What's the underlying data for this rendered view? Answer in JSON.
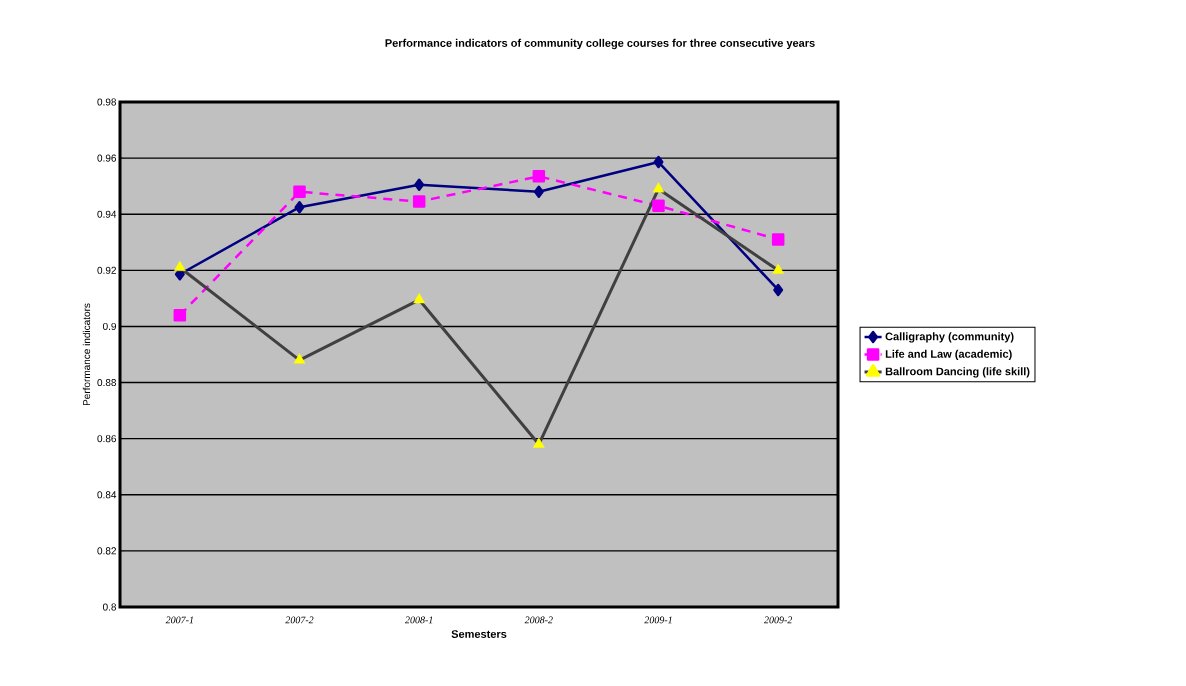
{
  "chart_data": {
    "type": "line",
    "title": "Performance indicators of community college courses for three consecutive years",
    "xlabel": "Semesters",
    "ylabel": "Performance indicators",
    "categories": [
      "2007-1",
      "2007-2",
      "2008-1",
      "2008-2",
      "2009-1",
      "2009-2"
    ],
    "series": [
      {
        "name": "Calligraphy (community)",
        "color": "#000080",
        "marker": "diamond",
        "line_style": "solid",
        "values": [
          0.9186,
          0.9425,
          0.9505,
          0.948,
          0.9586,
          0.913
        ]
      },
      {
        "name": "Life and Law (academic)",
        "color": "#ff00ff",
        "marker": "square",
        "line_style": "dashed",
        "values": [
          0.904,
          0.948,
          0.9445,
          0.9535,
          0.943,
          0.931
        ]
      },
      {
        "name": "Ballroom Dancing (life skill)",
        "color": "#404040",
        "colors": [
          "#ffff00",
          "#ffff00",
          "#ffff00",
          "#ffff00",
          "#ffff00",
          "#ffff00"
        ],
        "marker": "triangle",
        "line_style": "solid",
        "values": [
          0.921,
          0.888,
          0.9095,
          0.858,
          0.949,
          0.92
        ]
      }
    ],
    "ylim": [
      0.8,
      0.98
    ],
    "yticks": [
      0.8,
      0.82,
      0.84,
      0.86,
      0.88,
      0.9,
      0.92,
      0.94,
      0.96,
      0.98
    ],
    "grid": "y",
    "legend": "right"
  }
}
